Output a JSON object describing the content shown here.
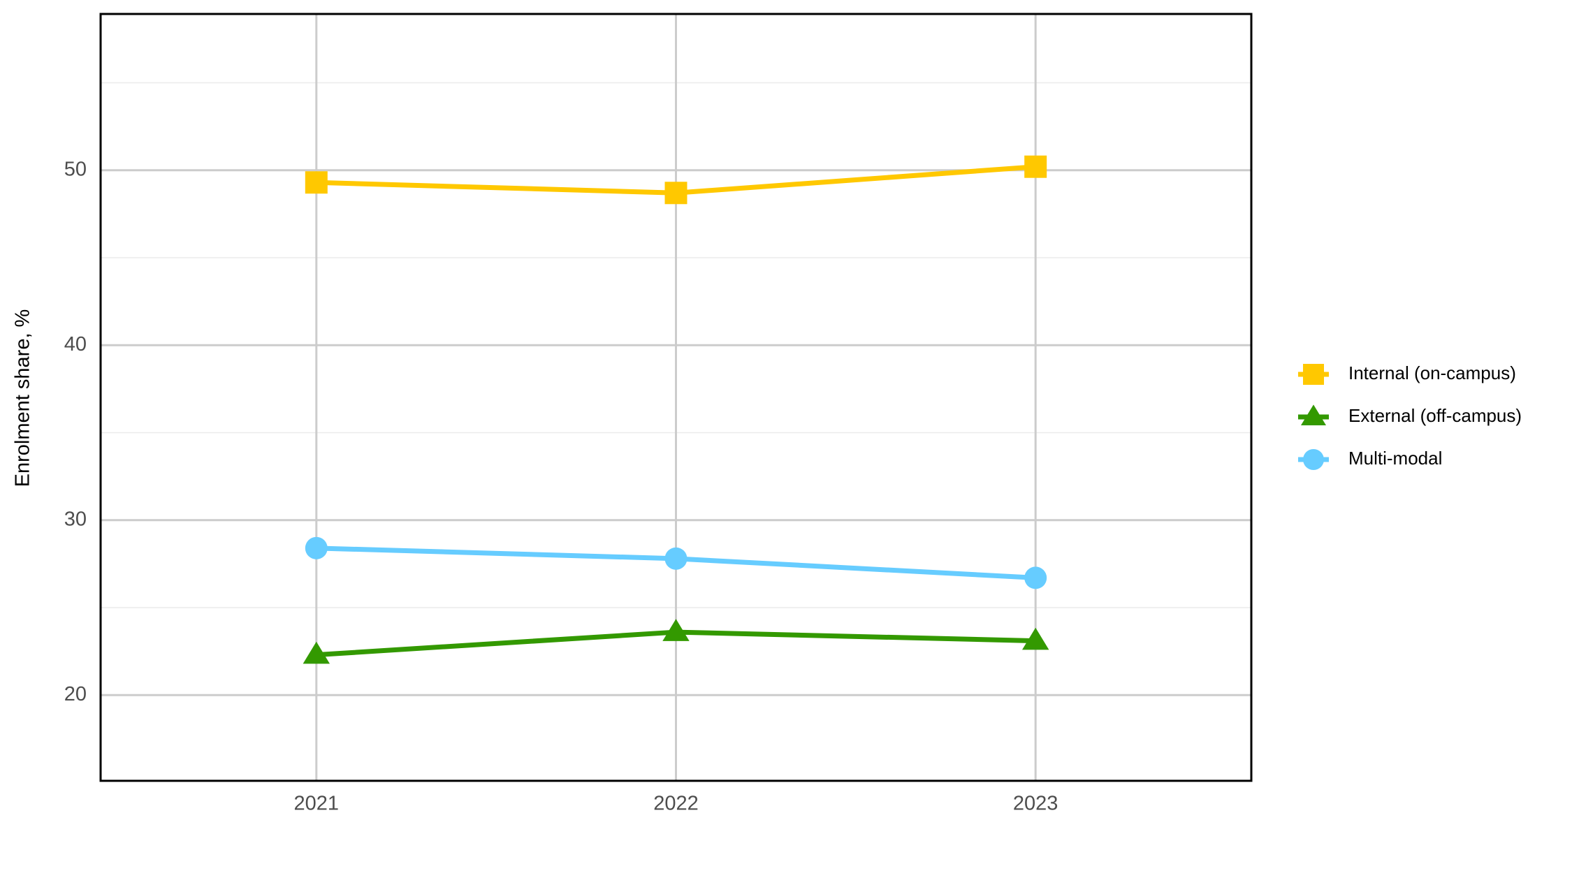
{
  "chart_data": {
    "type": "line",
    "y_label": "Enrolment share, %",
    "x": [
      2021,
      2022,
      2023
    ],
    "xlim": [
      2020.4,
      2023.6
    ],
    "xticks": [
      2021,
      2022,
      2023
    ],
    "ylim": [
      15.1,
      58.93
    ],
    "yticks": [
      20,
      30,
      40,
      50
    ],
    "yminorticks": [
      25,
      35,
      45,
      55
    ],
    "grid": true,
    "legend": "right",
    "series": [
      {
        "name": "Internal (on-campus)",
        "color": "#ffc800",
        "marker": "square",
        "values": [
          49.3,
          48.7,
          50.2
        ]
      },
      {
        "name": "External (off-campus)",
        "color": "#339900",
        "marker": "triangle",
        "values": [
          22.3,
          23.6,
          23.1
        ]
      },
      {
        "name": "Multi-modal",
        "color": "#66ccff",
        "marker": "circle",
        "values": [
          28.4,
          27.8,
          26.7
        ]
      }
    ]
  }
}
